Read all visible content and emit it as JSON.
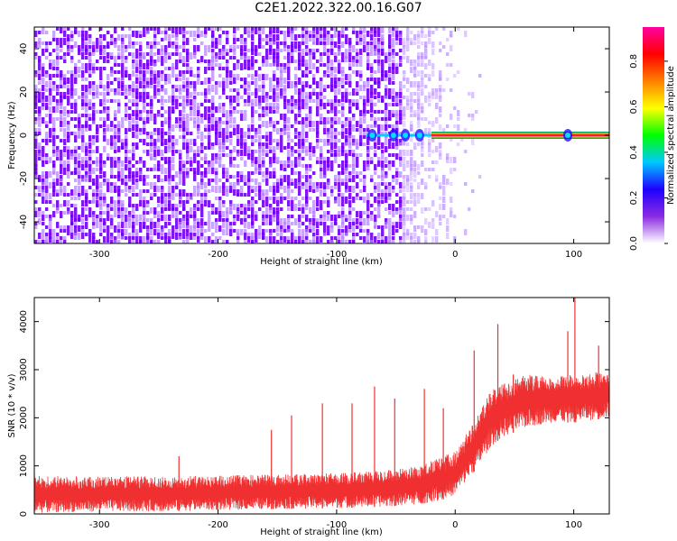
{
  "title": "C2E1.2022.322.00.16.G07",
  "chart_data": [
    {
      "type": "heatmap",
      "xlabel": "Height of straight line (km)",
      "ylabel": "Frequency (Hz)",
      "xlim": [
        -355,
        130
      ],
      "ylim": [
        -50,
        50
      ],
      "xticks": [
        -300,
        -200,
        -100,
        0,
        100
      ],
      "yticks": [
        -40,
        -20,
        0,
        20,
        40
      ],
      "xtick_labels": [
        "-300",
        "-200",
        "-100",
        "0",
        "100"
      ],
      "ytick_labels": [
        "-40",
        "-20",
        "0",
        "20",
        "40"
      ],
      "colorbar": {
        "label": "Normalized spectral amplitude",
        "range": [
          0,
          0.95
        ],
        "ticks": [
          0.0,
          0.2,
          0.4,
          0.6,
          0.8
        ],
        "tick_labels": [
          "0.0",
          "0.2",
          "0.4",
          "0.6",
          "0.8"
        ],
        "colormap": [
          "#ffffff",
          "#8a2be2",
          "#1e00ff",
          "#00c8ff",
          "#00ff00",
          "#ffff00",
          "#ff8000",
          "#ff0000",
          "#ff00a0"
        ]
      },
      "noise_region_x": [
        -355,
        -45
      ],
      "noise_fade_x": [
        -45,
        30
      ],
      "noise_color": "#7a00ee",
      "carrier": {
        "frequency": 0,
        "x_start": -75,
        "x_end": 130,
        "peak_amplitude": 0.85,
        "bright_x": [
          -20,
          130
        ]
      },
      "carrier_spots_x": [
        -70,
        -52,
        -42,
        -30,
        95
      ]
    },
    {
      "type": "line",
      "xlabel": "Height of straight line (km)",
      "ylabel": "SNR (10 * v/v)",
      "xlim": [
        -355,
        130
      ],
      "ylim": [
        0,
        4500
      ],
      "xticks": [
        -300,
        -200,
        -100,
        0,
        100
      ],
      "yticks": [
        0,
        1000,
        2000,
        3000,
        4000
      ],
      "xtick_labels": [
        "-300",
        "-200",
        "-100",
        "0",
        "100"
      ],
      "ytick_labels": [
        "0",
        "1000",
        "2000",
        "3000",
        "4000"
      ],
      "color": "#f03030",
      "envelope": {
        "x": [
          -355,
          -300,
          -250,
          -200,
          -150,
          -100,
          -60,
          -30,
          -10,
          0,
          10,
          20,
          30,
          40,
          60,
          80,
          100,
          130
        ],
        "upper": [
          800,
          780,
          780,
          800,
          820,
          850,
          900,
          1000,
          1200,
          1300,
          1700,
          2100,
          2600,
          2700,
          2900,
          2900,
          2900,
          3000
        ],
        "lower": [
          20,
          50,
          50,
          80,
          100,
          120,
          150,
          200,
          300,
          400,
          700,
          1000,
          1400,
          1600,
          1800,
          1900,
          1900,
          2000
        ]
      },
      "spikes": [
        {
          "x": -355,
          "y": 850
        },
        {
          "x": -233,
          "y": 1200
        },
        {
          "x": -155,
          "y": 1750
        },
        {
          "x": -138,
          "y": 2050
        },
        {
          "x": -112,
          "y": 2300
        },
        {
          "x": -87,
          "y": 2300
        },
        {
          "x": -68,
          "y": 2650
        },
        {
          "x": -51,
          "y": 2400
        },
        {
          "x": -26,
          "y": 2600
        },
        {
          "x": -10,
          "y": 2200
        },
        {
          "x": 16,
          "y": 3400
        },
        {
          "x": 36,
          "y": 3950
        },
        {
          "x": 49,
          "y": 2900
        },
        {
          "x": 95,
          "y": 3800
        },
        {
          "x": 101,
          "y": 4500
        },
        {
          "x": 121,
          "y": 3500
        }
      ]
    }
  ]
}
